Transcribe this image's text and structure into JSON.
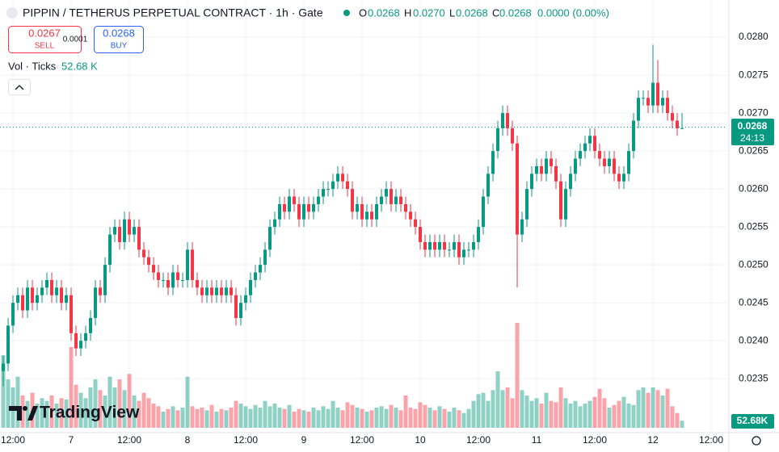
{
  "header": {
    "title": "PIPPIN / TETHERUS PERPETUAL CONTRACT · 1h · Gate",
    "o_label": "O",
    "o": "0.0268",
    "h_label": "H",
    "h": "0.0270",
    "l_label": "L",
    "l": "0.0268",
    "c_label": "C",
    "c": "0.0268",
    "change": "0.0000 (0.00%)"
  },
  "trade": {
    "sell_price": "0.0267",
    "sell": "SELL",
    "spread": "0.0001",
    "buy_price": "0.0268",
    "buy": "BUY"
  },
  "volume_legend": {
    "label": "Vol · Ticks",
    "value": "52.68 K"
  },
  "price_tag": {
    "price": "0.0268",
    "countdown": "24:13"
  },
  "volume_tag": "52.68K",
  "watermark": "TradingView",
  "chart_data": {
    "type": "candlestick",
    "up_color": "#089981",
    "down_color": "#f23645",
    "grid": true,
    "ylim": [
      0.0228,
      0.02849
    ],
    "yticks": [
      {
        "value": 0.0235,
        "label": "0.0235"
      },
      {
        "value": 0.024,
        "label": "0.0240"
      },
      {
        "value": 0.0245,
        "label": "0.0245"
      },
      {
        "value": 0.025,
        "label": "0.0250"
      },
      {
        "value": 0.0255,
        "label": "0.0255"
      },
      {
        "value": 0.026,
        "label": "0.0260"
      },
      {
        "value": 0.0265,
        "label": "0.0265"
      },
      {
        "value": 0.027,
        "label": "0.0270"
      },
      {
        "value": 0.0275,
        "label": "0.0275"
      },
      {
        "value": 0.028,
        "label": "0.0280"
      }
    ],
    "xlim": [
      -0.67,
      149.33
    ],
    "xticks": [
      {
        "value": 2,
        "label": "12:00"
      },
      {
        "value": 14,
        "label": "7"
      },
      {
        "value": 26,
        "label": "12:00"
      },
      {
        "value": 38,
        "label": "8"
      },
      {
        "value": 50,
        "label": "12:00"
      },
      {
        "value": 62,
        "label": "9"
      },
      {
        "value": 74,
        "label": "12:00"
      },
      {
        "value": 86,
        "label": "10"
      },
      {
        "value": 98,
        "label": "12:00"
      },
      {
        "value": 110,
        "label": "11"
      },
      {
        "value": 122,
        "label": "12:00"
      },
      {
        "value": 134,
        "label": "12"
      },
      {
        "value": 146,
        "label": "12:00"
      }
    ],
    "open": [
      0.0236,
      0.0237,
      0.0242,
      0.0245,
      0.0246,
      0.0244,
      0.0247,
      0.0245,
      0.0246,
      0.0247,
      0.0248,
      0.0246,
      0.0247,
      0.0245,
      0.0246,
      0.0241,
      0.0239,
      0.024,
      0.0241,
      0.0243,
      0.0247,
      0.0246,
      0.025,
      0.0254,
      0.0255,
      0.0253,
      0.0256,
      0.0254,
      0.0255,
      0.0252,
      0.0251,
      0.025,
      0.0249,
      0.0248,
      0.0248,
      0.0247,
      0.0249,
      0.0248,
      0.0248,
      0.0252,
      0.0248,
      0.0247,
      0.0246,
      0.0247,
      0.0246,
      0.0247,
      0.0246,
      0.0247,
      0.0246,
      0.0243,
      0.0245,
      0.0246,
      0.0248,
      0.0249,
      0.025,
      0.0252,
      0.0255,
      0.0256,
      0.0258,
      0.0257,
      0.0259,
      0.0258,
      0.0256,
      0.0258,
      0.0257,
      0.0258,
      0.0259,
      0.026,
      0.026,
      0.0261,
      0.0262,
      0.0261,
      0.026,
      0.0257,
      0.0258,
      0.0256,
      0.0257,
      0.0256,
      0.0258,
      0.0259,
      0.026,
      0.0258,
      0.0259,
      0.0258,
      0.0257,
      0.0256,
      0.0255,
      0.0253,
      0.0252,
      0.0253,
      0.0252,
      0.0253,
      0.0252,
      0.0252,
      0.0253,
      0.0251,
      0.0252,
      0.0252,
      0.0253,
      0.0255,
      0.0259,
      0.0262,
      0.0265,
      0.0268,
      0.027,
      0.0268,
      0.0266,
      0.0254,
      0.0256,
      0.026,
      0.0262,
      0.0263,
      0.0262,
      0.0264,
      0.0263,
      0.0261,
      0.0256,
      0.026,
      0.0262,
      0.0264,
      0.0265,
      0.0266,
      0.0267,
      0.0265,
      0.0264,
      0.0263,
      0.0264,
      0.0262,
      0.0261,
      0.0262,
      0.0265,
      0.0269,
      0.0272,
      0.0272,
      0.0271,
      0.0274,
      0.0271,
      0.0272,
      0.027,
      0.0269,
      0.0268
    ],
    "high": [
      0.0238,
      0.0243,
      0.0246,
      0.0247,
      0.0247,
      0.0248,
      0.0248,
      0.0247,
      0.0248,
      0.0249,
      0.0249,
      0.0248,
      0.0248,
      0.0247,
      0.0247,
      0.0242,
      0.0241,
      0.0242,
      0.0244,
      0.0248,
      0.0248,
      0.0251,
      0.0255,
      0.0256,
      0.0256,
      0.0257,
      0.0257,
      0.0256,
      0.0256,
      0.0253,
      0.0252,
      0.0251,
      0.025,
      0.0249,
      0.0249,
      0.025,
      0.025,
      0.0249,
      0.0253,
      0.0253,
      0.0249,
      0.0248,
      0.0248,
      0.0248,
      0.0248,
      0.0248,
      0.0248,
      0.0248,
      0.0247,
      0.0246,
      0.0247,
      0.0249,
      0.025,
      0.0251,
      0.0253,
      0.0256,
      0.0257,
      0.0259,
      0.0259,
      0.026,
      0.026,
      0.0259,
      0.0259,
      0.0259,
      0.0259,
      0.026,
      0.0261,
      0.0261,
      0.0262,
      0.0263,
      0.0263,
      0.0262,
      0.0261,
      0.0259,
      0.0259,
      0.0258,
      0.0258,
      0.0259,
      0.026,
      0.0261,
      0.0261,
      0.026,
      0.026,
      0.0259,
      0.0258,
      0.0257,
      0.0256,
      0.0254,
      0.0254,
      0.0254,
      0.0254,
      0.0254,
      0.0253,
      0.0254,
      0.0254,
      0.0253,
      0.0253,
      0.0254,
      0.0256,
      0.026,
      0.0263,
      0.0266,
      0.0269,
      0.0271,
      0.0271,
      0.0269,
      0.0267,
      0.0257,
      0.0261,
      0.0263,
      0.0264,
      0.0264,
      0.0265,
      0.0265,
      0.0264,
      0.0262,
      0.0261,
      0.0263,
      0.0265,
      0.0266,
      0.0267,
      0.0268,
      0.0268,
      0.0266,
      0.0265,
      0.0265,
      0.0265,
      0.0263,
      0.0263,
      0.0266,
      0.027,
      0.0273,
      0.0273,
      0.0273,
      0.0279,
      0.0277,
      0.0273,
      0.0273,
      0.0271,
      0.027,
      0.027
    ],
    "low": [
      0.0234,
      0.0236,
      0.0241,
      0.0244,
      0.0243,
      0.0243,
      0.0244,
      0.0244,
      0.0245,
      0.0246,
      0.0245,
      0.0245,
      0.0244,
      0.0244,
      0.024,
      0.0238,
      0.0238,
      0.0239,
      0.024,
      0.0242,
      0.0245,
      0.0245,
      0.0249,
      0.0253,
      0.0252,
      0.0252,
      0.0253,
      0.0253,
      0.0251,
      0.025,
      0.0249,
      0.0248,
      0.0247,
      0.0247,
      0.0246,
      0.0246,
      0.0247,
      0.0247,
      0.0247,
      0.0247,
      0.0246,
      0.0245,
      0.0245,
      0.0245,
      0.0245,
      0.0245,
      0.0245,
      0.0245,
      0.0242,
      0.0242,
      0.0244,
      0.0245,
      0.0247,
      0.0248,
      0.0249,
      0.0251,
      0.0254,
      0.0255,
      0.0256,
      0.0256,
      0.0257,
      0.0255,
      0.0255,
      0.0256,
      0.0256,
      0.0257,
      0.0258,
      0.0259,
      0.0259,
      0.026,
      0.026,
      0.0259,
      0.0256,
      0.0256,
      0.0255,
      0.0255,
      0.0255,
      0.0255,
      0.0257,
      0.0258,
      0.0257,
      0.0257,
      0.0257,
      0.0256,
      0.0255,
      0.0254,
      0.0252,
      0.0251,
      0.0251,
      0.0251,
      0.0251,
      0.0251,
      0.0251,
      0.0251,
      0.025,
      0.025,
      0.0251,
      0.0251,
      0.0252,
      0.0254,
      0.0258,
      0.0261,
      0.0264,
      0.0267,
      0.0267,
      0.0265,
      0.0247,
      0.0253,
      0.0255,
      0.0259,
      0.0261,
      0.0261,
      0.0261,
      0.0262,
      0.026,
      0.0255,
      0.0255,
      0.0259,
      0.0261,
      0.0263,
      0.0264,
      0.0265,
      0.0264,
      0.0263,
      0.0262,
      0.0262,
      0.0261,
      0.026,
      0.026,
      0.0261,
      0.0264,
      0.0268,
      0.0271,
      0.027,
      0.027,
      0.027,
      0.027,
      0.0269,
      0.0268,
      0.0267,
      0.0268
    ],
    "close": [
      0.0237,
      0.0242,
      0.0245,
      0.0246,
      0.0244,
      0.0247,
      0.0245,
      0.0246,
      0.0247,
      0.0248,
      0.0246,
      0.0247,
      0.0245,
      0.0246,
      0.0241,
      0.0239,
      0.024,
      0.0241,
      0.0243,
      0.0247,
      0.0246,
      0.025,
      0.0254,
      0.0255,
      0.0253,
      0.0256,
      0.0254,
      0.0255,
      0.0252,
      0.0251,
      0.025,
      0.0249,
      0.0248,
      0.0248,
      0.0247,
      0.0249,
      0.0248,
      0.0248,
      0.0252,
      0.0248,
      0.0247,
      0.0246,
      0.0247,
      0.0246,
      0.0247,
      0.0246,
      0.0247,
      0.0246,
      0.0243,
      0.0245,
      0.0246,
      0.0248,
      0.0249,
      0.025,
      0.0252,
      0.0255,
      0.0256,
      0.0258,
      0.0257,
      0.0259,
      0.0258,
      0.0256,
      0.0258,
      0.0257,
      0.0258,
      0.0259,
      0.026,
      0.026,
      0.0261,
      0.0262,
      0.0261,
      0.026,
      0.0257,
      0.0258,
      0.0256,
      0.0257,
      0.0256,
      0.0258,
      0.0259,
      0.026,
      0.0258,
      0.0259,
      0.0258,
      0.0257,
      0.0256,
      0.0255,
      0.0253,
      0.0252,
      0.0253,
      0.0252,
      0.0253,
      0.0252,
      0.0252,
      0.0253,
      0.0251,
      0.0252,
      0.0252,
      0.0253,
      0.0255,
      0.0259,
      0.0262,
      0.0265,
      0.0268,
      0.027,
      0.0268,
      0.0266,
      0.0254,
      0.0256,
      0.026,
      0.0262,
      0.0263,
      0.0262,
      0.0264,
      0.0263,
      0.0261,
      0.0256,
      0.026,
      0.0262,
      0.0264,
      0.0265,
      0.0266,
      0.0267,
      0.0265,
      0.0264,
      0.0263,
      0.0264,
      0.0262,
      0.0261,
      0.0262,
      0.0265,
      0.0269,
      0.0272,
      0.0272,
      0.0271,
      0.0274,
      0.0271,
      0.0272,
      0.027,
      0.0269,
      0.0268,
      0.0268
    ],
    "volume": [
      540,
      360,
      300,
      380,
      240,
      200,
      260,
      180,
      220,
      200,
      240,
      180,
      220,
      210,
      600,
      320,
      260,
      220,
      300,
      360,
      280,
      240,
      380,
      300,
      360,
      280,
      400,
      240,
      200,
      260,
      220,
      180,
      160,
      120,
      140,
      160,
      130,
      150,
      380,
      160,
      140,
      150,
      130,
      170,
      120,
      140,
      130,
      150,
      200,
      180,
      160,
      140,
      170,
      150,
      200,
      160,
      180,
      150,
      140,
      170,
      120,
      140,
      130,
      120,
      150,
      130,
      160,
      140,
      200,
      150,
      130,
      190,
      170,
      150,
      140,
      120,
      130,
      150,
      160,
      140,
      170,
      150,
      130,
      240,
      150,
      140,
      190,
      170,
      150,
      130,
      160,
      140,
      120,
      150,
      130,
      110,
      140,
      200,
      250,
      260,
      200,
      280,
      420,
      280,
      300,
      220,
      780,
      280,
      240,
      200,
      220,
      180,
      260,
      200,
      190,
      300,
      220,
      180,
      200,
      160,
      180,
      200,
      230,
      290,
      220,
      150,
      170,
      200,
      230,
      180,
      170,
      280,
      300,
      260,
      300,
      280,
      240,
      290,
      160,
      110,
      52.68
    ]
  }
}
